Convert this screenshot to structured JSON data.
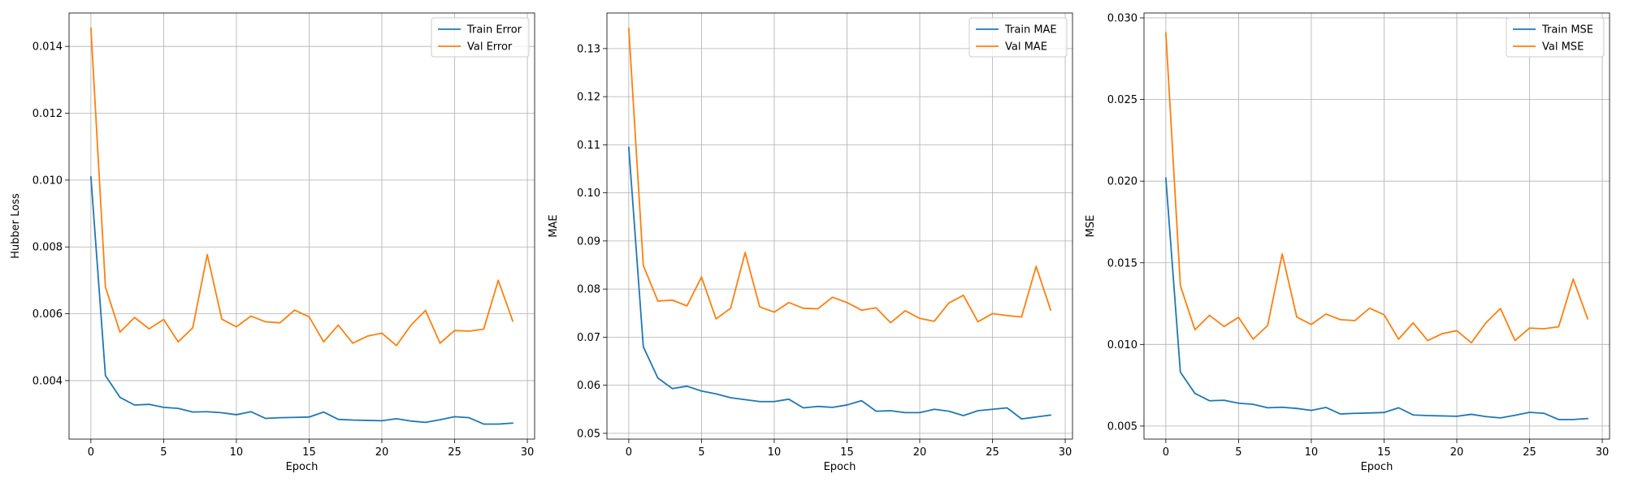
{
  "chart_data": [
    {
      "type": "line",
      "xlabel": "Epoch",
      "ylabel": "Hubber Loss",
      "xlim": [
        -1.5,
        30.5
      ],
      "ylim": [
        0.00225,
        0.015
      ],
      "xticks": [
        0,
        5,
        10,
        15,
        20,
        25,
        30
      ],
      "xtick_labels": [
        "0",
        "5",
        "10",
        "15",
        "20",
        "25",
        "30"
      ],
      "yticks": [
        0.004,
        0.006,
        0.008,
        0.01,
        0.012,
        0.014
      ],
      "ytick_labels": [
        "0.004",
        "0.006",
        "0.008",
        "0.010",
        "0.012",
        "0.014"
      ],
      "grid": true,
      "legend_position": "top-right",
      "x": [
        0,
        1,
        2,
        3,
        4,
        5,
        6,
        7,
        8,
        9,
        10,
        11,
        12,
        13,
        14,
        15,
        16,
        17,
        18,
        19,
        20,
        21,
        22,
        23,
        24,
        25,
        26,
        27,
        28,
        29
      ],
      "series": [
        {
          "name": "Train Error",
          "color": "#1f77b4",
          "values": [
            0.0101,
            0.00415,
            0.0035,
            0.00327,
            0.00329,
            0.0032,
            0.00317,
            0.00306,
            0.00307,
            0.00304,
            0.00298,
            0.00307,
            0.00287,
            0.00289,
            0.0029,
            0.00291,
            0.00306,
            0.00284,
            0.00282,
            0.00281,
            0.0028,
            0.00286,
            0.00279,
            0.00275,
            0.00283,
            0.00292,
            0.00289,
            0.0027,
            0.0027,
            0.00273
          ]
        },
        {
          "name": "Val Error",
          "color": "#ff7f0e",
          "values": [
            0.01455,
            0.0068,
            0.00545,
            0.00589,
            0.00555,
            0.00583,
            0.00516,
            0.00558,
            0.00777,
            0.00584,
            0.00561,
            0.00593,
            0.00576,
            0.00573,
            0.00611,
            0.00591,
            0.00516,
            0.00566,
            0.00512,
            0.00533,
            0.00542,
            0.00505,
            0.00566,
            0.0061,
            0.00512,
            0.0055,
            0.00548,
            0.00554,
            0.007,
            0.00578
          ]
        }
      ]
    },
    {
      "type": "line",
      "xlabel": "Epoch",
      "ylabel": "MAE",
      "xlim": [
        -1.5,
        30.5
      ],
      "ylim": [
        0.0488,
        0.1374
      ],
      "xticks": [
        0,
        5,
        10,
        15,
        20,
        25,
        30
      ],
      "xtick_labels": [
        "0",
        "5",
        "10",
        "15",
        "20",
        "25",
        "30"
      ],
      "yticks": [
        0.05,
        0.06,
        0.07,
        0.08,
        0.09,
        0.1,
        0.11,
        0.12,
        0.13
      ],
      "ytick_labels": [
        "0.05",
        "0.06",
        "0.07",
        "0.08",
        "0.09",
        "0.10",
        "0.11",
        "0.12",
        "0.13"
      ],
      "grid": true,
      "legend_position": "top-right",
      "x": [
        0,
        1,
        2,
        3,
        4,
        5,
        6,
        7,
        8,
        9,
        10,
        11,
        12,
        13,
        14,
        15,
        16,
        17,
        18,
        19,
        20,
        21,
        22,
        23,
        24,
        25,
        26,
        27,
        28,
        29
      ],
      "series": [
        {
          "name": "Train MAE",
          "color": "#1f77b4",
          "values": [
            0.1095,
            0.068,
            0.0615,
            0.0593,
            0.0598,
            0.0588,
            0.0582,
            0.0574,
            0.057,
            0.0566,
            0.0566,
            0.0571,
            0.0553,
            0.0556,
            0.0554,
            0.0559,
            0.0568,
            0.0546,
            0.0547,
            0.0543,
            0.0543,
            0.055,
            0.0546,
            0.0537,
            0.0547,
            0.055,
            0.0553,
            0.053,
            0.0534,
            0.0538
          ]
        },
        {
          "name": "Val MAE",
          "color": "#ff7f0e",
          "values": [
            0.1342,
            0.0849,
            0.0775,
            0.0777,
            0.0765,
            0.0825,
            0.0738,
            0.076,
            0.0876,
            0.0763,
            0.0752,
            0.0772,
            0.076,
            0.0759,
            0.0783,
            0.0772,
            0.0756,
            0.0761,
            0.073,
            0.0755,
            0.0739,
            0.0733,
            0.0771,
            0.0787,
            0.0732,
            0.0749,
            0.0745,
            0.0742,
            0.0847,
            0.0756
          ]
        }
      ]
    },
    {
      "type": "line",
      "xlabel": "Epoch",
      "ylabel": "MSE",
      "xlim": [
        -1.5,
        30.5
      ],
      "ylim": [
        0.0042,
        0.0303
      ],
      "xticks": [
        0,
        5,
        10,
        15,
        20,
        25,
        30
      ],
      "xtick_labels": [
        "0",
        "5",
        "10",
        "15",
        "20",
        "25",
        "30"
      ],
      "yticks": [
        0.005,
        0.01,
        0.015,
        0.02,
        0.025,
        0.03
      ],
      "ytick_labels": [
        "0.005",
        "0.010",
        "0.015",
        "0.020",
        "0.025",
        "0.030"
      ],
      "grid": true,
      "legend_position": "top-right",
      "x": [
        0,
        1,
        2,
        3,
        4,
        5,
        6,
        7,
        8,
        9,
        10,
        11,
        12,
        13,
        14,
        15,
        16,
        17,
        18,
        19,
        20,
        21,
        22,
        23,
        24,
        25,
        26,
        27,
        28,
        29
      ],
      "series": [
        {
          "name": "Train MSE",
          "color": "#1f77b4",
          "values": [
            0.0202,
            0.0083,
            0.007,
            0.00655,
            0.00658,
            0.0064,
            0.00633,
            0.00612,
            0.00615,
            0.00608,
            0.00596,
            0.00614,
            0.00574,
            0.00578,
            0.0058,
            0.00583,
            0.00612,
            0.00568,
            0.00564,
            0.00562,
            0.0056,
            0.00572,
            0.00558,
            0.0055,
            0.00566,
            0.00584,
            0.00578,
            0.0054,
            0.0054,
            0.00546
          ]
        },
        {
          "name": "Val MSE",
          "color": "#ff7f0e",
          "values": [
            0.0291,
            0.0136,
            0.0109,
            0.01178,
            0.0111,
            0.01166,
            0.01032,
            0.01116,
            0.01554,
            0.01168,
            0.01122,
            0.01186,
            0.01152,
            0.01146,
            0.01222,
            0.01182,
            0.01032,
            0.01132,
            0.01024,
            0.01066,
            0.01084,
            0.0101,
            0.01132,
            0.0122,
            0.01024,
            0.011,
            0.01096,
            0.01108,
            0.014,
            0.01156
          ]
        }
      ]
    }
  ]
}
